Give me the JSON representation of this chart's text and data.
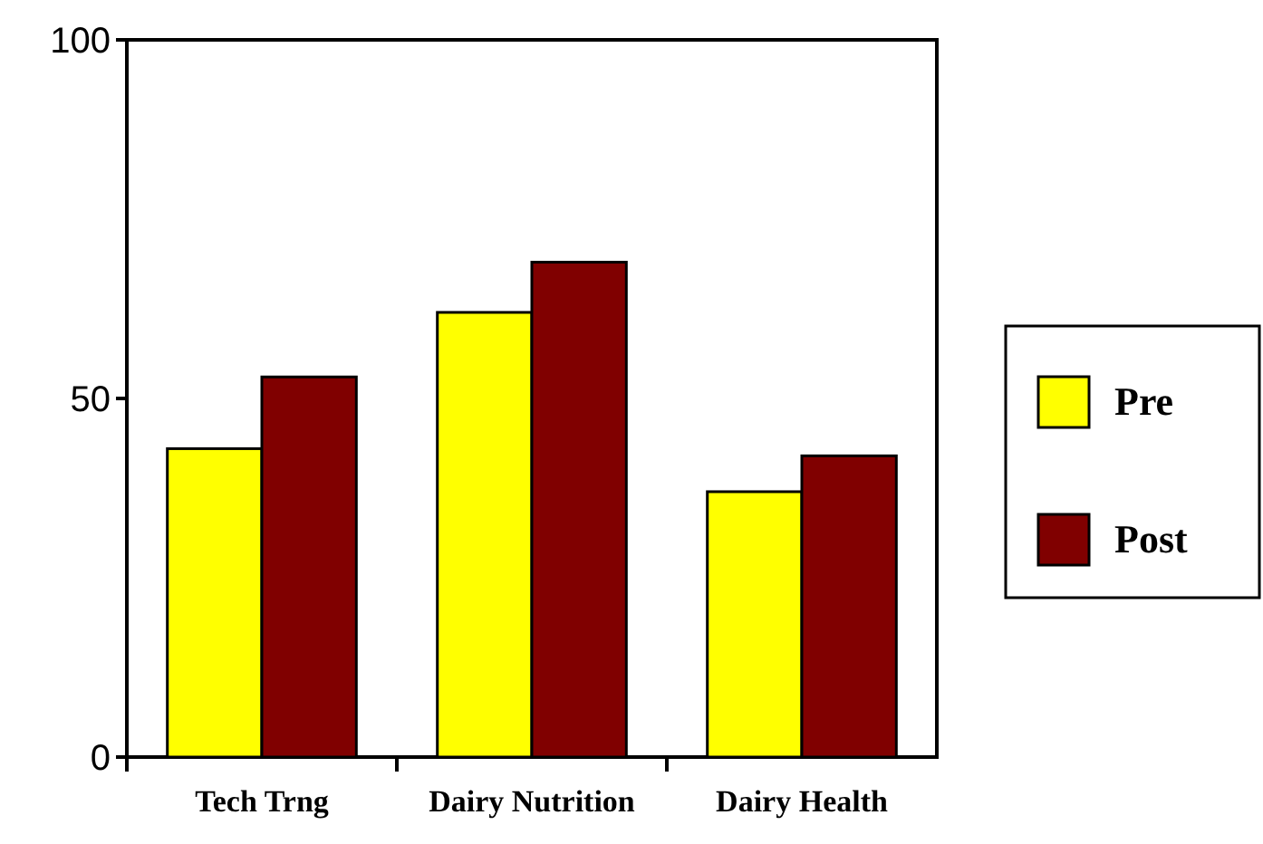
{
  "chart_data": {
    "type": "bar",
    "categories": [
      "Tech Trng",
      "Dairy Nutrition",
      "Dairy Health"
    ],
    "series": [
      {
        "name": "Pre",
        "color": "#ffff00",
        "values": [
          43,
          62,
          37
        ]
      },
      {
        "name": "Post",
        "color": "#800000",
        "values": [
          53,
          69,
          42
        ]
      }
    ],
    "ylim": [
      0,
      100
    ],
    "yticks": [
      0,
      50,
      100
    ],
    "grid": false,
    "legend": "right"
  }
}
